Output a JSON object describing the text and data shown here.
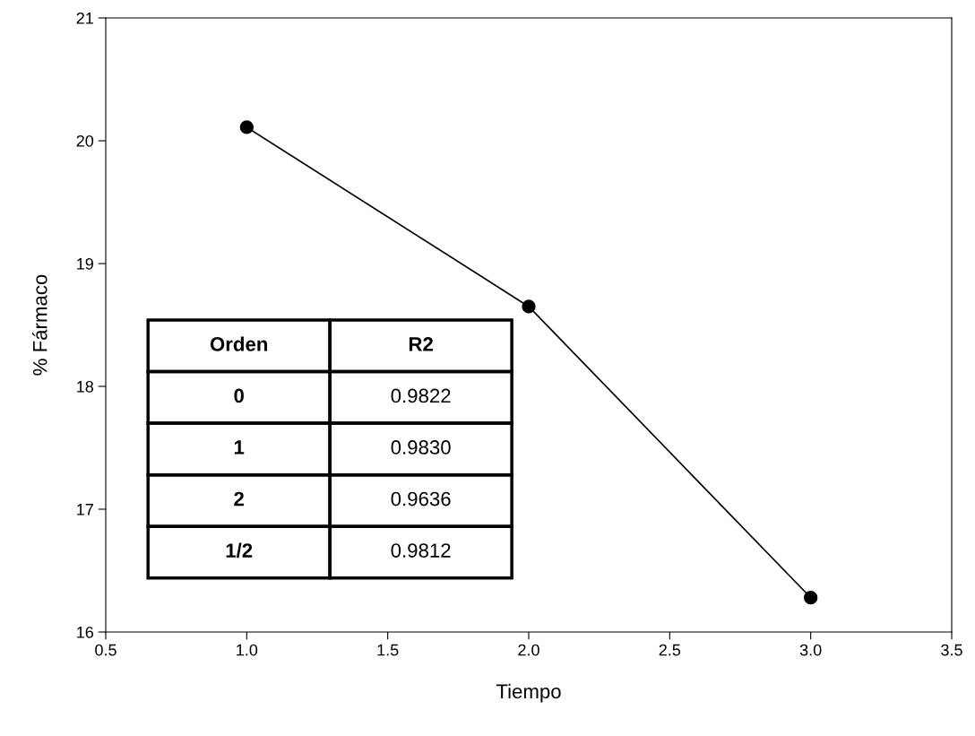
{
  "chart_data": {
    "type": "line",
    "xlabel": "Tiempo",
    "ylabel": "% Fármaco",
    "x": [
      1.0,
      2.0,
      3.0
    ],
    "series": [
      {
        "color": "#000000",
        "values": [
          20.11,
          18.65,
          16.28
        ]
      }
    ],
    "marker": "circle",
    "line_style": "solid",
    "grid": false,
    "legend": false,
    "xlim": [
      0.5,
      3.5
    ],
    "xticks": [
      {
        "value": 0.5,
        "label": "0.5"
      },
      {
        "value": 1.0,
        "label": "1.0"
      },
      {
        "value": 1.5,
        "label": "1.5"
      },
      {
        "value": 2.0,
        "label": "2.0"
      },
      {
        "value": 2.5,
        "label": "2.5"
      },
      {
        "value": 3.0,
        "label": "3.0"
      },
      {
        "value": 3.5,
        "label": "3.5"
      }
    ],
    "ylim": [
      16,
      21
    ],
    "yticks": [
      16,
      17,
      18,
      19,
      20,
      21
    ],
    "annotations": [
      "Orden",
      "R2",
      "0",
      "0.9822",
      "1",
      "0.9830",
      "2",
      "0.9636",
      "1/2",
      "0.9812"
    ]
  }
}
